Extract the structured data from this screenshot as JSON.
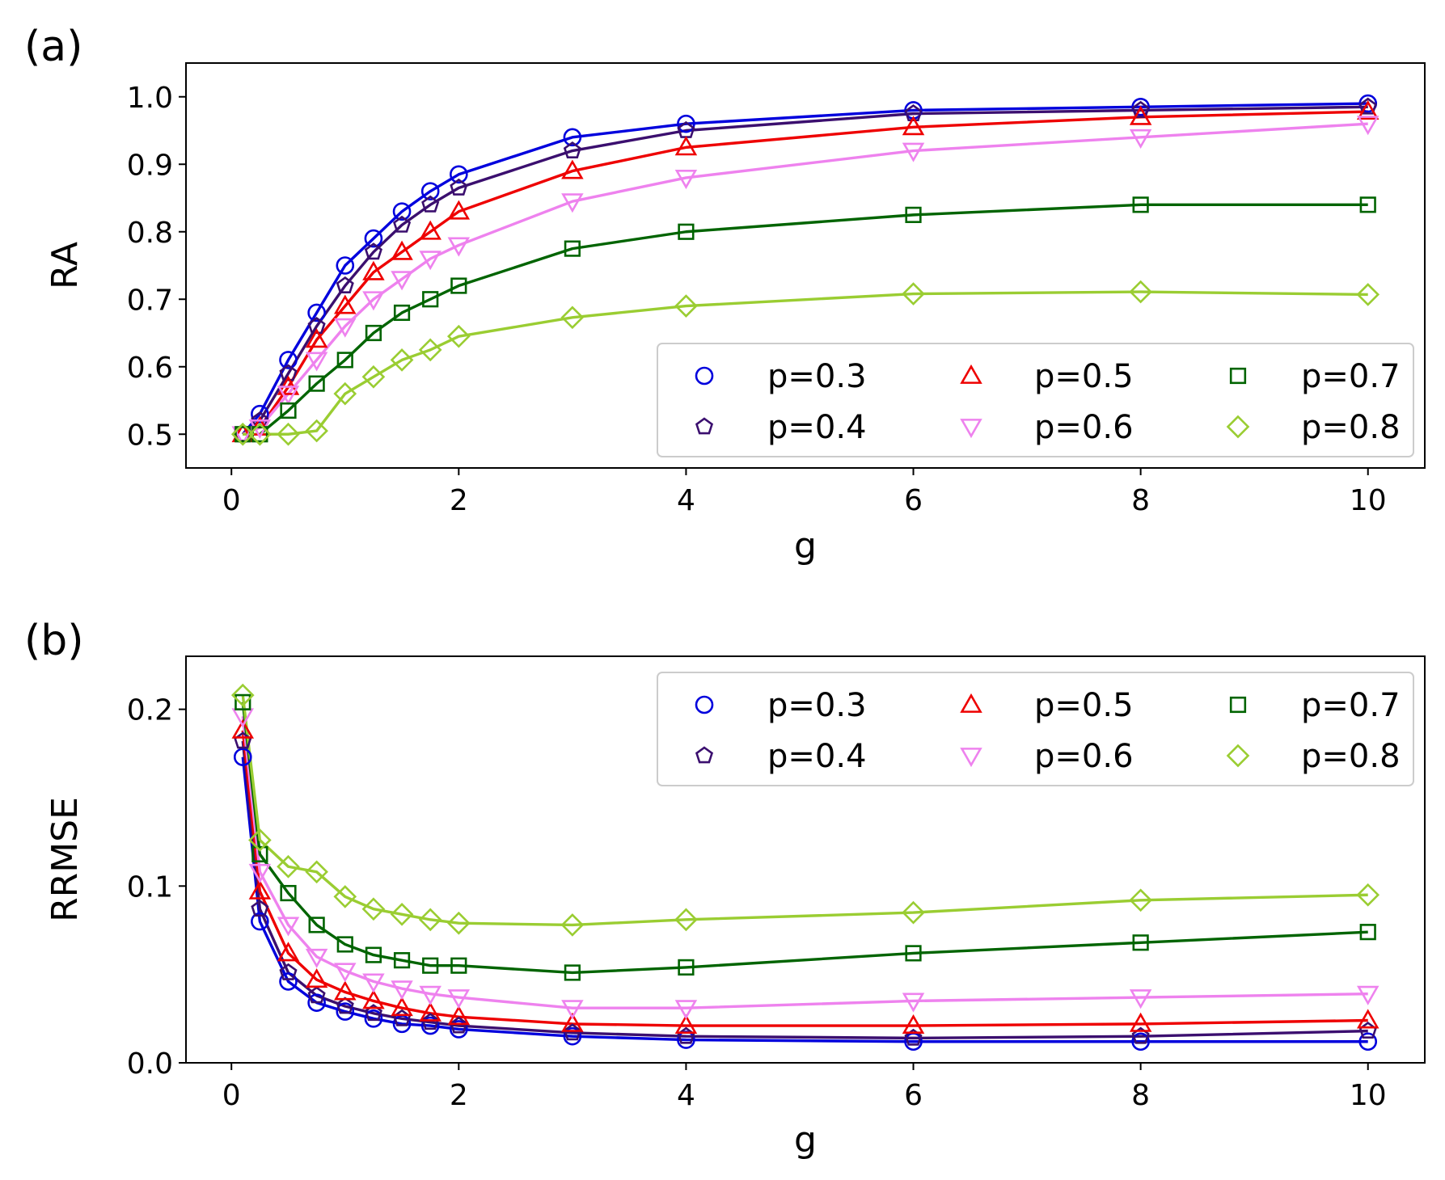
{
  "chart_data": [
    {
      "type": "line",
      "panel_label": "(a)",
      "xlabel": "g",
      "ylabel": "RA",
      "xlim": [
        -0.4,
        10.5
      ],
      "ylim": [
        0.45,
        1.05
      ],
      "xticks": [
        0,
        2,
        4,
        6,
        8,
        10
      ],
      "xtick_labels": [
        "0",
        "2",
        "4",
        "6",
        "8",
        "10"
      ],
      "yticks": [
        0.5,
        0.6,
        0.7,
        0.8,
        0.9,
        1.0
      ],
      "ytick_labels": [
        "0.5",
        "0.6",
        "0.7",
        "0.8",
        "0.9",
        "1.0"
      ],
      "grid": false,
      "legend": {
        "placement": "lower-right",
        "columns": 3
      },
      "x": [
        0.1,
        0.25,
        0.5,
        0.75,
        1.0,
        1.25,
        1.5,
        1.75,
        2.0,
        3.0,
        4.0,
        6.0,
        8.0,
        10.0
      ],
      "series": [
        {
          "name": "p=0.3",
          "color": "#0000dd",
          "marker": "circle",
          "values": [
            0.5,
            0.53,
            0.61,
            0.68,
            0.75,
            0.79,
            0.83,
            0.86,
            0.885,
            0.94,
            0.96,
            0.98,
            0.985,
            0.99
          ]
        },
        {
          "name": "p=0.4",
          "color": "#3b0f6f",
          "marker": "pentagon",
          "values": [
            0.5,
            0.52,
            0.59,
            0.66,
            0.72,
            0.77,
            0.81,
            0.84,
            0.865,
            0.92,
            0.95,
            0.975,
            0.98,
            0.985
          ]
        },
        {
          "name": "p=0.5",
          "color": "#ee0000",
          "marker": "triangle-up",
          "values": [
            0.5,
            0.51,
            0.57,
            0.64,
            0.69,
            0.74,
            0.77,
            0.8,
            0.83,
            0.89,
            0.925,
            0.955,
            0.97,
            0.978
          ]
        },
        {
          "name": "p=0.6",
          "color": "#ee82ee",
          "marker": "triangle-down",
          "values": [
            0.5,
            0.51,
            0.56,
            0.61,
            0.66,
            0.7,
            0.73,
            0.76,
            0.78,
            0.845,
            0.88,
            0.92,
            0.94,
            0.96
          ]
        },
        {
          "name": "p=0.7",
          "color": "#006400",
          "marker": "square",
          "values": [
            0.5,
            0.5,
            0.535,
            0.575,
            0.61,
            0.65,
            0.68,
            0.7,
            0.72,
            0.775,
            0.8,
            0.825,
            0.84,
            0.84
          ]
        },
        {
          "name": "p=0.8",
          "color": "#9acd32",
          "marker": "diamond",
          "values": [
            0.5,
            0.5,
            0.5,
            0.505,
            0.56,
            0.585,
            0.61,
            0.625,
            0.645,
            0.673,
            0.69,
            0.708,
            0.711,
            0.707
          ]
        }
      ]
    },
    {
      "type": "line",
      "panel_label": "(b)",
      "xlabel": "g",
      "ylabel": "RRMSE",
      "xlim": [
        -0.4,
        10.5
      ],
      "ylim": [
        0.0,
        0.23
      ],
      "xticks": [
        0,
        2,
        4,
        6,
        8,
        10
      ],
      "xtick_labels": [
        "0",
        "2",
        "4",
        "6",
        "8",
        "10"
      ],
      "yticks": [
        0.0,
        0.1,
        0.2
      ],
      "ytick_labels": [
        "0.0",
        "0.1",
        "0.2"
      ],
      "grid": false,
      "legend": {
        "placement": "upper-right",
        "columns": 3
      },
      "x": [
        0.1,
        0.25,
        0.5,
        0.75,
        1.0,
        1.25,
        1.5,
        1.75,
        2.0,
        3.0,
        4.0,
        6.0,
        8.0,
        10.0
      ],
      "series": [
        {
          "name": "p=0.3",
          "color": "#0000dd",
          "marker": "circle",
          "values": [
            0.173,
            0.08,
            0.046,
            0.034,
            0.029,
            0.025,
            0.022,
            0.021,
            0.019,
            0.015,
            0.013,
            0.012,
            0.012,
            0.012
          ]
        },
        {
          "name": "p=0.4",
          "color": "#3b0f6f",
          "marker": "pentagon",
          "values": [
            0.182,
            0.087,
            0.051,
            0.038,
            0.032,
            0.028,
            0.025,
            0.023,
            0.021,
            0.017,
            0.015,
            0.014,
            0.015,
            0.018
          ]
        },
        {
          "name": "p=0.5",
          "color": "#ee0000",
          "marker": "triangle-up",
          "values": [
            0.188,
            0.097,
            0.062,
            0.047,
            0.04,
            0.035,
            0.031,
            0.028,
            0.026,
            0.022,
            0.021,
            0.021,
            0.022,
            0.024
          ]
        },
        {
          "name": "p=0.6",
          "color": "#ee82ee",
          "marker": "triangle-down",
          "values": [
            0.196,
            0.108,
            0.078,
            0.06,
            0.052,
            0.046,
            0.042,
            0.039,
            0.037,
            0.031,
            0.031,
            0.035,
            0.037,
            0.039
          ]
        },
        {
          "name": "p=0.7",
          "color": "#006400",
          "marker": "square",
          "values": [
            0.204,
            0.118,
            0.096,
            0.078,
            0.067,
            0.061,
            0.058,
            0.055,
            0.055,
            0.051,
            0.054,
            0.062,
            0.068,
            0.074
          ]
        },
        {
          "name": "p=0.8",
          "color": "#9acd32",
          "marker": "diamond",
          "values": [
            0.208,
            0.126,
            0.111,
            0.108,
            0.094,
            0.087,
            0.084,
            0.081,
            0.079,
            0.078,
            0.081,
            0.085,
            0.092,
            0.095
          ]
        }
      ]
    }
  ]
}
